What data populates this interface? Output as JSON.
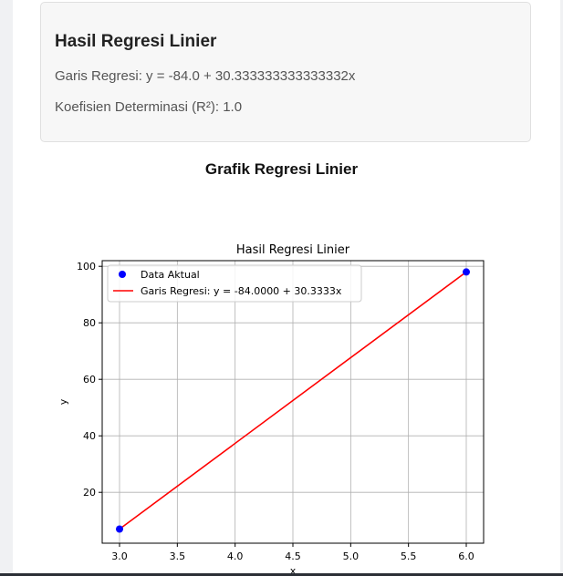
{
  "result": {
    "title": "Hasil Regresi Linier",
    "equation": "Garis Regresi: y = -84.0 + 30.333333333333332x",
    "r2": "Koefisien Determinasi (R²): 1.0"
  },
  "section": {
    "title": "Grafik Regresi Linier"
  },
  "chart_data": {
    "type": "scatter",
    "title": "Hasil Regresi Linier",
    "xlabel": "x",
    "ylabel": "y",
    "xlim": [
      2.85,
      6.15
    ],
    "ylim": [
      2,
      102
    ],
    "xticks": [
      3.0,
      3.5,
      4.0,
      4.5,
      5.0,
      5.5,
      6.0
    ],
    "xtick_labels": [
      "3.0",
      "3.5",
      "4.0",
      "4.5",
      "5.0",
      "5.5",
      "6.0"
    ],
    "yticks": [
      20,
      40,
      60,
      80,
      100
    ],
    "ytick_labels": [
      "20",
      "40",
      "60",
      "80",
      "100"
    ],
    "grid": true,
    "legend_position": "top-left",
    "series": [
      {
        "name": "Data Aktual",
        "kind": "scatter",
        "color": "#0000ff",
        "x": [
          3,
          6
        ],
        "y": [
          7,
          98
        ]
      },
      {
        "name": "Garis Regresi: y = -84.0000 + 30.3333x",
        "kind": "line",
        "color": "#ff0000",
        "x": [
          3,
          6
        ],
        "y": [
          7,
          98
        ]
      }
    ]
  }
}
